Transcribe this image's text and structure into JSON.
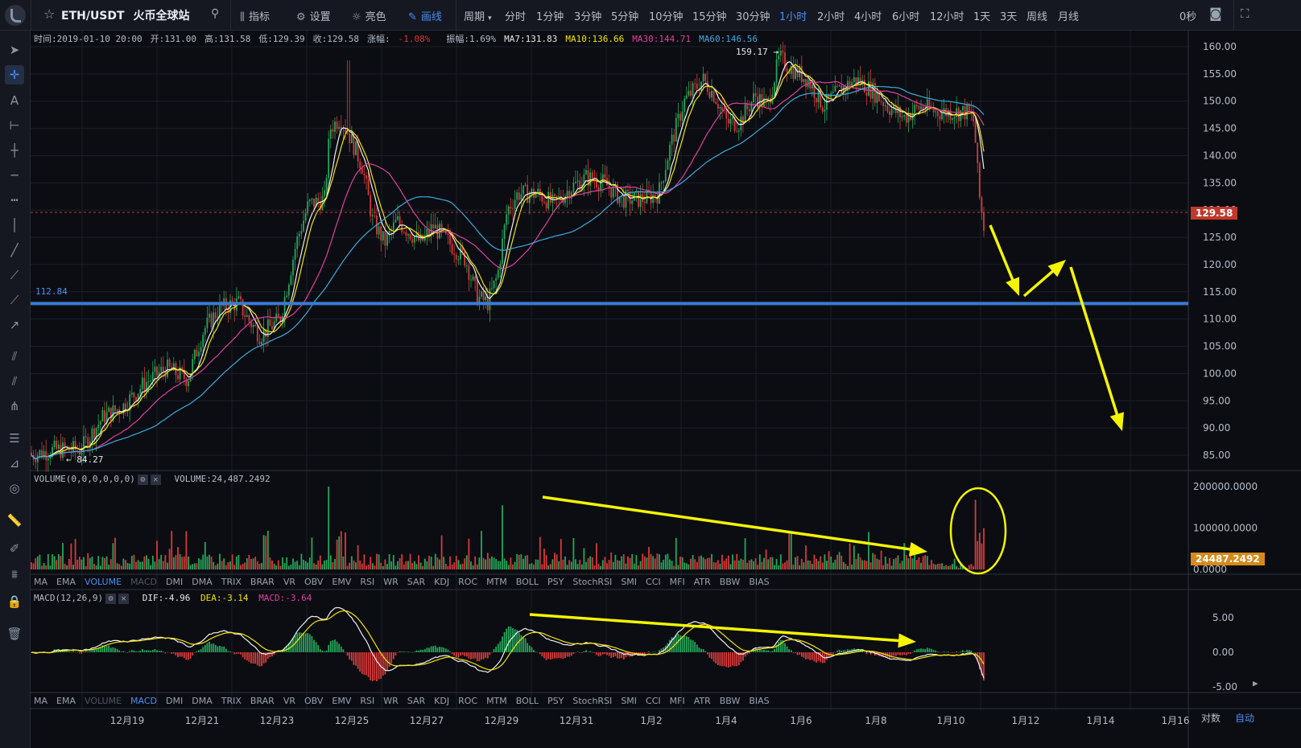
{
  "header": {
    "symbol": "ETH/USDT",
    "exchange": "火币全球站",
    "tools": [
      {
        "icon": "indicator-icon",
        "label": "指标"
      },
      {
        "icon": "settings-icon",
        "label": "设置"
      },
      {
        "icon": "brightness-icon",
        "label": "亮色"
      },
      {
        "icon": "draw-line-icon",
        "label": "画线"
      }
    ],
    "period_label": "周期",
    "periods": [
      "分时",
      "1分钟",
      "3分钟",
      "5分钟",
      "10分钟",
      "15分钟",
      "30分钟",
      "1小时",
      "2小时",
      "4小时",
      "6小时",
      "12小时",
      "1天",
      "3天",
      "周线",
      "月线"
    ],
    "active_period": "1小时",
    "countdown": "0秒"
  },
  "info": {
    "time": "时间:2019-01-10 20:00",
    "open": "开:131.00",
    "high": "高:131.58",
    "low": "低:129.39",
    "close": "收:129.58",
    "change": "-1.08%",
    "change_label": "涨幅:",
    "amplitude": "振幅:1.69%",
    "ma7": "MA7:131.83",
    "ma10": "MA10:136.66",
    "ma30": "MA30:144.71",
    "ma60": "MA60:146.56"
  },
  "colors": {
    "ma7": "#f0f0f0",
    "ma10": "#f5e400",
    "ma30": "#e040a0",
    "ma60": "#3fa9e0",
    "up": "#26a65b",
    "down": "#d63a3a",
    "accent": "#4d8df7",
    "annotation": "#f5f500",
    "hline": "#3a7bd5"
  },
  "main_chart": {
    "price_axis": [
      "160.00",
      "155.00",
      "150.00",
      "145.00",
      "140.00",
      "135.00",
      "130.00",
      "125.00",
      "120.00",
      "115.00",
      "110.00",
      "105.00",
      "100.00",
      "95.00",
      "90.00",
      "85.00"
    ],
    "last_price": "129.58",
    "high_label": "159.17",
    "low_label": "84.27",
    "hline_label": "112.84"
  },
  "volume": {
    "label": "VOLUME(0,0,0,0,0,0)",
    "value": "VOLUME:24,487.2492",
    "axis": [
      "200000.0000",
      "100000.0000",
      "0.0000"
    ],
    "current": "24487.2492"
  },
  "macd": {
    "label": "MACD(12,26,9)",
    "dif": "DIF:-4.96",
    "dea": "DEA:-3.14",
    "macd": "MACD:-3.64",
    "axis": [
      "5.00",
      "0.00",
      "-5.00"
    ]
  },
  "indicator_tabs": [
    "MA",
    "EMA",
    "VOLUME",
    "MACD",
    "DMI",
    "DMA",
    "TRIX",
    "BRAR",
    "VR",
    "OBV",
    "EMV",
    "RSI",
    "WR",
    "SAR",
    "KDJ",
    "ROC",
    "MTM",
    "BOLL",
    "PSY",
    "StochRSI",
    "SMI",
    "CCI",
    "MFI",
    "ATR",
    "BBW",
    "BIAS"
  ],
  "x_axis": [
    "12月19",
    "12月21",
    "12月23",
    "12月25",
    "12月27",
    "12月29",
    "12月31",
    "1月2",
    "1月4",
    "1月6",
    "1月8",
    "1月10",
    "1月12",
    "1月14",
    "1月16"
  ],
  "footer": {
    "log": "对数",
    "auto": "自动"
  }
}
